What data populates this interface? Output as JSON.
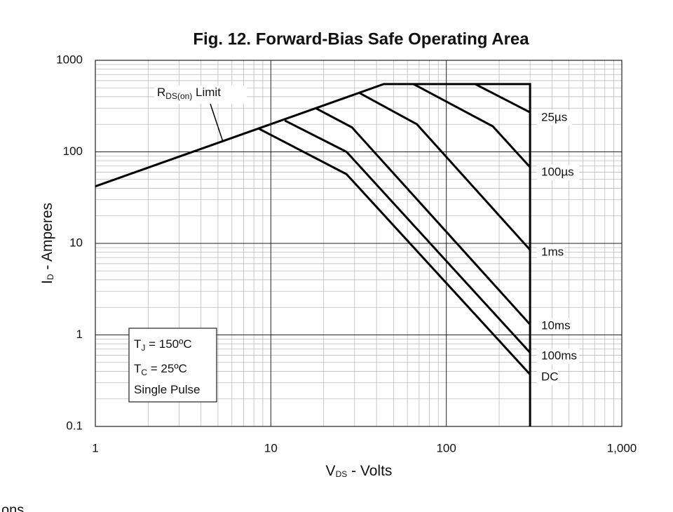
{
  "chart_data": {
    "type": "line",
    "title": "Fig. 12. Forward-Bias Safe Operating Area",
    "x_label": {
      "main": "V",
      "sub": "DS",
      "rest": " - Volts"
    },
    "y_label": {
      "main": "I",
      "sub": "D",
      "rest": " - Amperes"
    },
    "log_x": true,
    "log_y": true,
    "grid": true,
    "minor_grid": true,
    "xlim": [
      1,
      1000
    ],
    "ylim": [
      0.1,
      1000
    ],
    "xticks": [
      1,
      10,
      100,
      {
        "value": 1000,
        "label": "1,000"
      }
    ],
    "yticks": [
      0.1,
      1,
      10,
      100,
      1000
    ],
    "color": "#000000",
    "boundary": {
      "x": [
        1,
        44,
        300,
        300
      ],
      "values": [
        42,
        550,
        550,
        0.1
      ]
    },
    "boundary_label": {
      "main": "R",
      "sub": "DS(on)",
      "rest": " Limit"
    },
    "series": [
      {
        "name": "25µs",
        "x": [
          146,
          300
        ],
        "values": [
          550,
          270
        ]
      },
      {
        "name": "100µs",
        "x": [
          65,
          184,
          300
        ],
        "values": [
          550,
          190,
          68
        ]
      },
      {
        "name": "1ms",
        "x": [
          32,
          68,
          300
        ],
        "values": [
          440,
          200,
          8.5
        ]
      },
      {
        "name": "10ms",
        "x": [
          18,
          29,
          300
        ],
        "values": [
          300,
          185,
          1.3
        ]
      },
      {
        "name": "100ms",
        "x": [
          12,
          27,
          300
        ],
        "values": [
          220,
          100,
          0.64
        ]
      },
      {
        "name": "DC",
        "x": [
          8.5,
          27,
          300
        ],
        "values": [
          180,
          57,
          0.37
        ]
      }
    ],
    "conditions": [
      {
        "main": "T",
        "sub": "J",
        "rest": " = 150ºC"
      },
      {
        "main": "T",
        "sub": "C",
        "rest": " = 25ºC"
      },
      {
        "main": "Single Pulse"
      }
    ]
  },
  "footer_fragment": "ons"
}
